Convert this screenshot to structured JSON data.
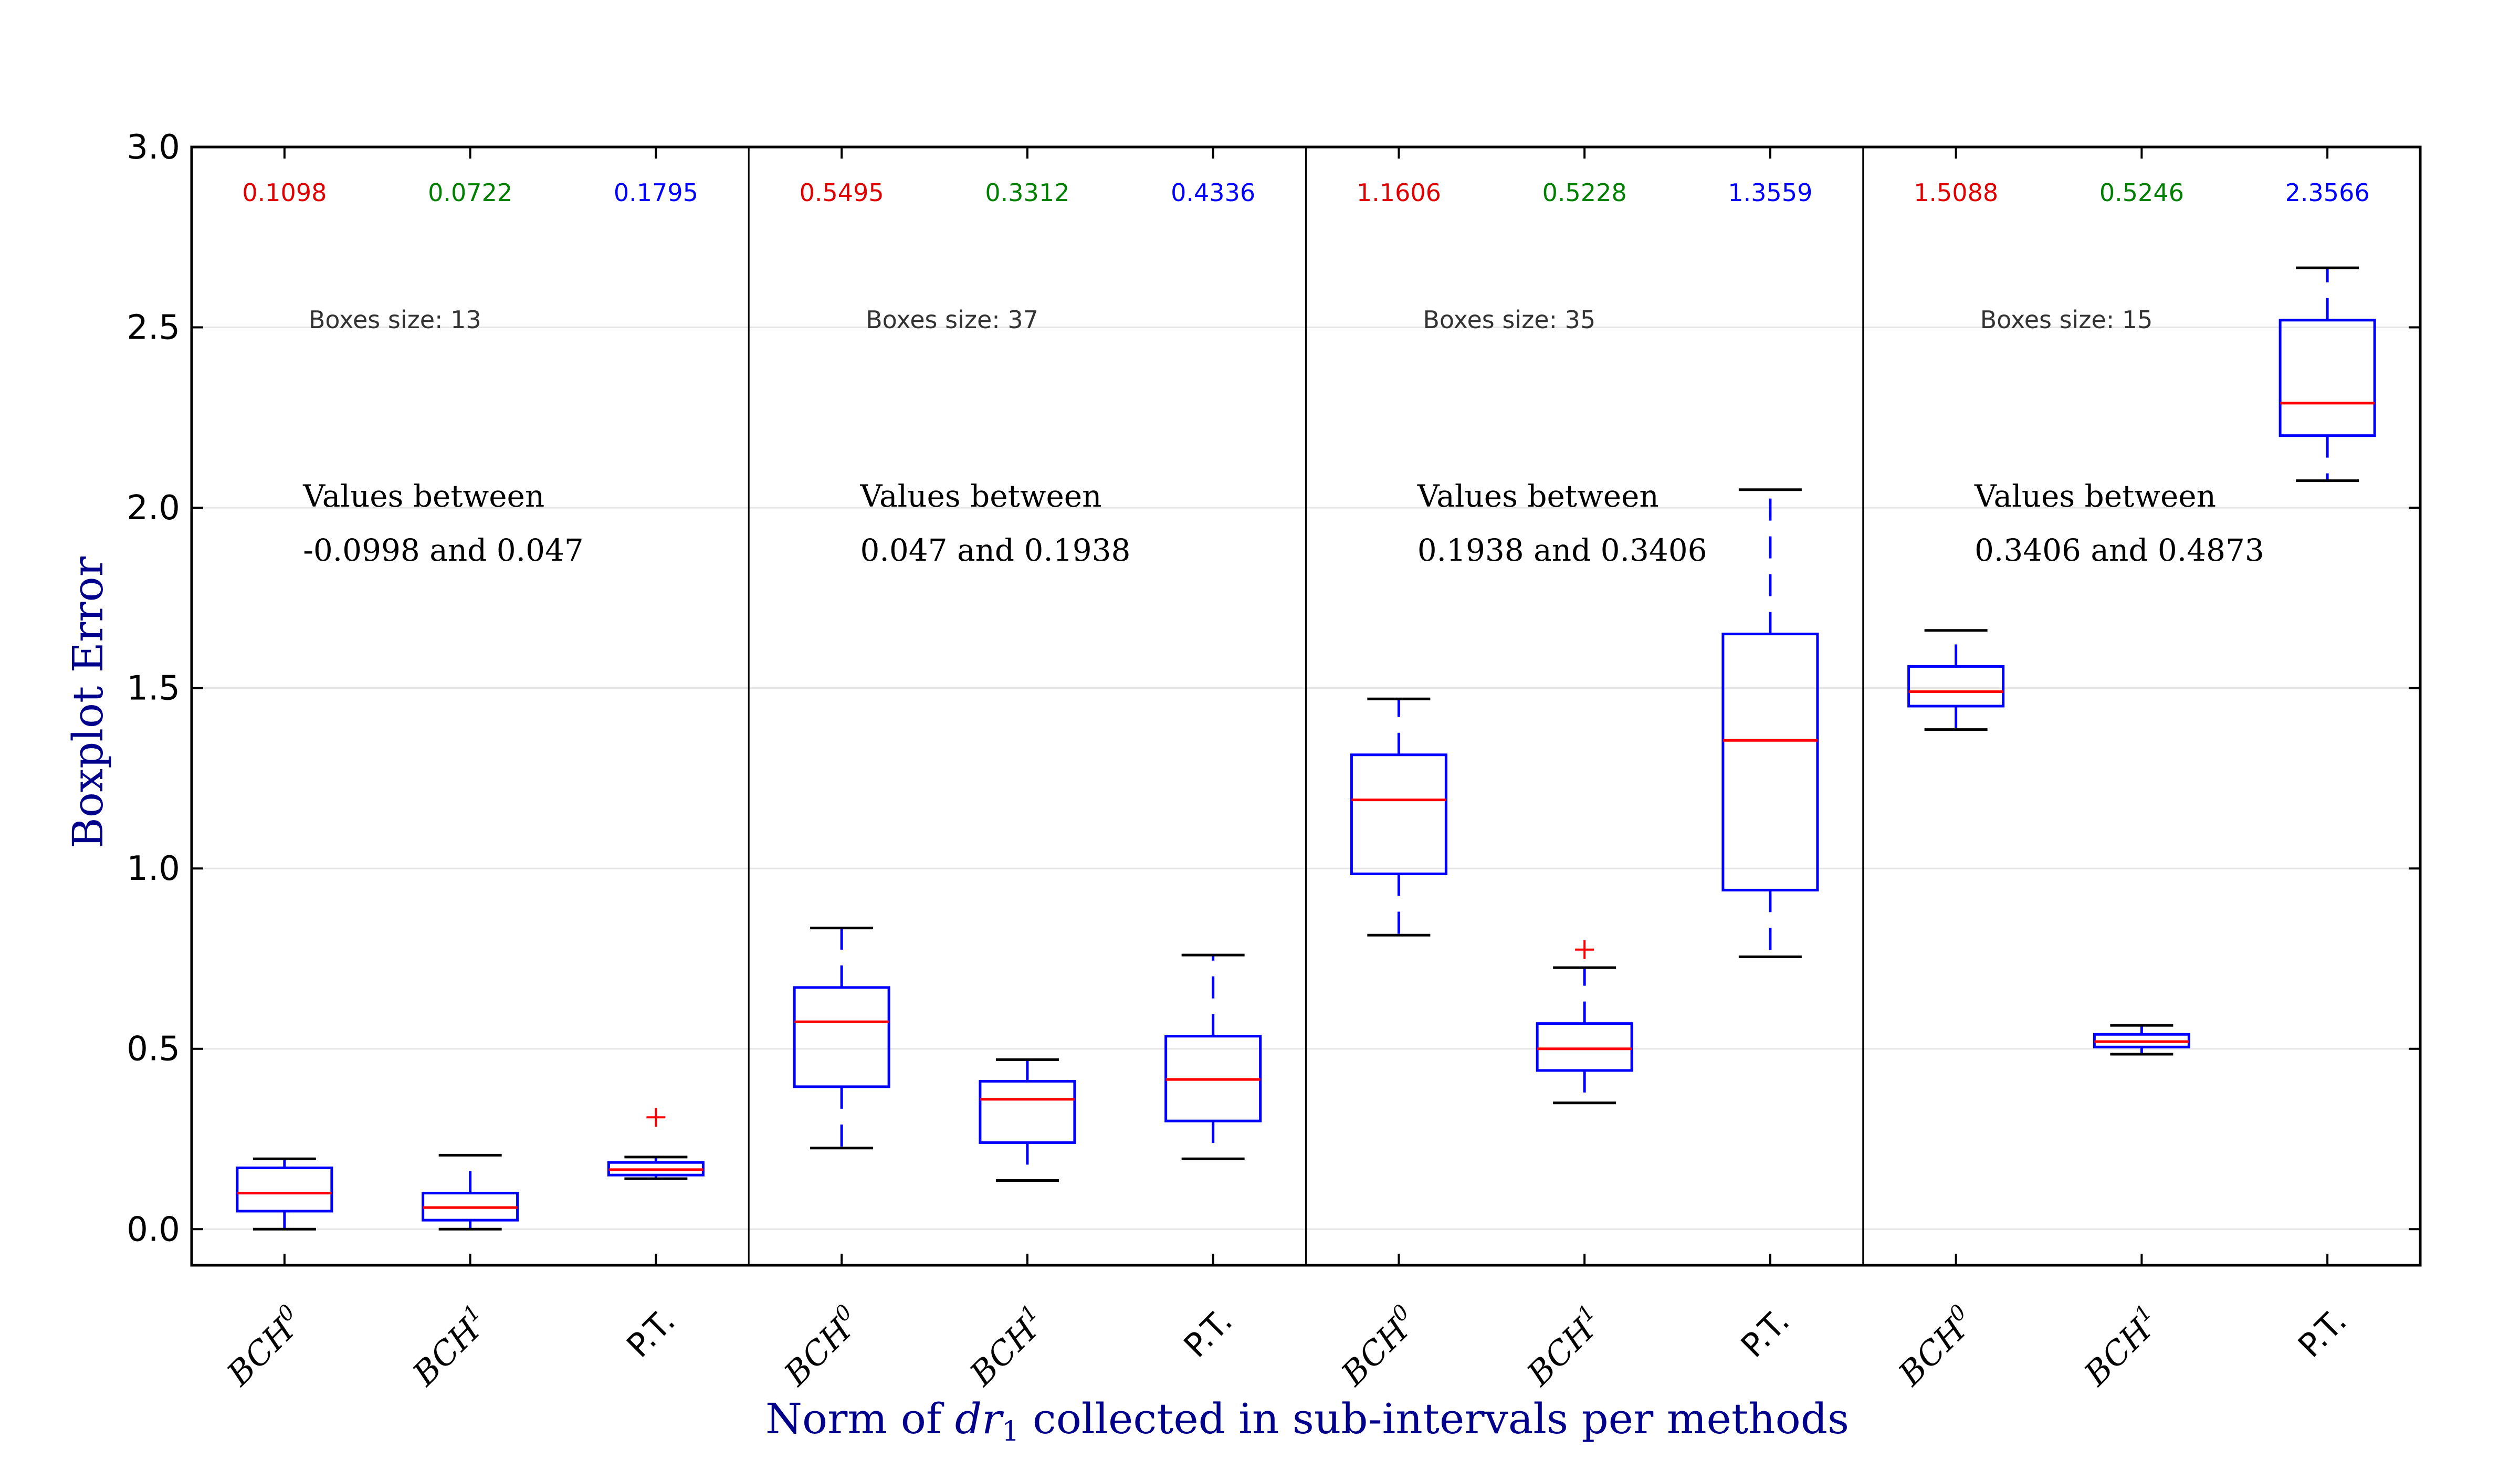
{
  "chart_data": {
    "type": "box",
    "ylabel": "Boxplot Error",
    "xlabel": "Norm of dr1 collected in sub-intervals per methods",
    "xlabel_parts": {
      "prefix": "Norm of ",
      "var": "dr",
      "sub": "1",
      "suffix": " collected in sub-intervals per methods"
    },
    "ylim": [
      -0.1,
      3.0
    ],
    "yticks": [
      "0.0",
      "0.5",
      "1.0",
      "1.5",
      "2.0",
      "2.5",
      "3.0"
    ],
    "ytick_values": [
      0.0,
      0.5,
      1.0,
      1.5,
      2.0,
      2.5,
      3.0
    ],
    "grid": true,
    "method_colors": {
      "BCH0": "#e00000",
      "BCH1": "#008000",
      "P.T.": "#0000ff"
    },
    "box_color": "#0000ff",
    "median_color": "#ff0000",
    "whisker_cap_color": "#000000",
    "groups": [
      {
        "range_line1": "Values between",
        "range_line2": "-0.0998 and 0.047",
        "boxes_size_label": "Boxes size: 13",
        "methods": [
          {
            "label": "BCH",
            "sup": "0",
            "mean_label": "0.1098",
            "whislo": 0.0,
            "q1": 0.05,
            "med": 0.1,
            "q3": 0.17,
            "whishi": 0.195,
            "fliers": []
          },
          {
            "label": "BCH",
            "sup": "1",
            "mean_label": "0.0722",
            "whislo": 0.0,
            "q1": 0.025,
            "med": 0.06,
            "q3": 0.1,
            "whishi": 0.205,
            "fliers": []
          },
          {
            "label": "P.T.",
            "sup": "",
            "mean_label": "0.1795",
            "whislo": 0.14,
            "q1": 0.15,
            "med": 0.165,
            "q3": 0.185,
            "whishi": 0.2,
            "fliers": [
              0.31
            ]
          }
        ]
      },
      {
        "range_line1": "Values between",
        "range_line2": "0.047 and 0.1938",
        "boxes_size_label": "Boxes size: 37",
        "methods": [
          {
            "label": "BCH",
            "sup": "0",
            "mean_label": "0.5495",
            "whislo": 0.225,
            "q1": 0.395,
            "med": 0.575,
            "q3": 0.67,
            "whishi": 0.835,
            "fliers": []
          },
          {
            "label": "BCH",
            "sup": "1",
            "mean_label": "0.3312",
            "whislo": 0.135,
            "q1": 0.24,
            "med": 0.36,
            "q3": 0.41,
            "whishi": 0.47,
            "fliers": []
          },
          {
            "label": "P.T.",
            "sup": "",
            "mean_label": "0.4336",
            "whislo": 0.195,
            "q1": 0.3,
            "med": 0.415,
            "q3": 0.535,
            "whishi": 0.76,
            "fliers": []
          }
        ]
      },
      {
        "range_line1": "Values between",
        "range_line2": "0.1938 and 0.3406",
        "boxes_size_label": "Boxes size: 35",
        "methods": [
          {
            "label": "BCH",
            "sup": "0",
            "mean_label": "1.1606",
            "whislo": 0.815,
            "q1": 0.985,
            "med": 1.19,
            "q3": 1.315,
            "whishi": 1.47,
            "fliers": []
          },
          {
            "label": "BCH",
            "sup": "1",
            "mean_label": "0.5228",
            "whislo": 0.35,
            "q1": 0.44,
            "med": 0.5,
            "q3": 0.57,
            "whishi": 0.725,
            "fliers": [
              0.775
            ]
          },
          {
            "label": "P.T.",
            "sup": "",
            "mean_label": "1.3559",
            "whislo": 0.755,
            "q1": 0.94,
            "med": 1.355,
            "q3": 1.65,
            "whishi": 2.05,
            "fliers": []
          }
        ]
      },
      {
        "range_line1": "Values between",
        "range_line2": "0.3406 and 0.4873",
        "boxes_size_label": "Boxes size: 15",
        "methods": [
          {
            "label": "BCH",
            "sup": "0",
            "mean_label": "1.5088",
            "whislo": 1.385,
            "q1": 1.45,
            "med": 1.49,
            "q3": 1.56,
            "whishi": 1.66,
            "fliers": []
          },
          {
            "label": "BCH",
            "sup": "1",
            "mean_label": "0.5246",
            "whislo": 0.485,
            "q1": 0.505,
            "med": 0.52,
            "q3": 0.54,
            "whishi": 0.565,
            "fliers": []
          },
          {
            "label": "P.T.",
            "sup": "",
            "mean_label": "2.3566",
            "whislo": 2.075,
            "q1": 2.2,
            "med": 2.29,
            "q3": 2.52,
            "whishi": 2.665,
            "fliers": []
          }
        ]
      }
    ]
  }
}
